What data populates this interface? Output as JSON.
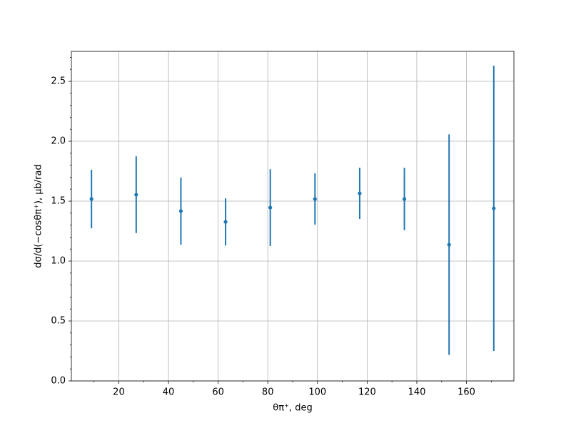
{
  "chart_data": {
    "type": "errorbar",
    "x_label": "θπ⁺, deg",
    "y_label": "dσ/d(−cosθπ⁺), μb/rad",
    "x": [
      9,
      27,
      45,
      63,
      81,
      99,
      117,
      135,
      153,
      171
    ],
    "series": [
      {
        "color": "#1f77b4",
        "values": [
          1.518,
          1.554,
          1.417,
          1.327,
          1.446,
          1.518,
          1.565,
          1.518,
          1.137,
          1.44
        ],
        "errors": [
          0.244,
          0.32,
          0.28,
          0.197,
          0.32,
          0.214,
          0.214,
          0.26,
          0.92,
          1.19
        ]
      }
    ],
    "xlim": [
      0.9,
      179.1
    ],
    "ylim": [
      0,
      2.75
    ],
    "xticks": [
      20,
      40,
      60,
      80,
      100,
      120,
      140,
      160
    ],
    "yticks": [
      {
        "value": 0,
        "label": "0.0"
      },
      0.5,
      {
        "value": 1,
        "label": "1.0"
      },
      1.5,
      {
        "value": 2,
        "label": "2.0"
      },
      2.5
    ],
    "xminorticks": [
      10,
      30,
      50,
      70,
      90,
      110,
      130,
      150,
      170
    ],
    "yminorticks": [
      0.1,
      0.2,
      0.3,
      0.4,
      0.6,
      0.7,
      0.8,
      0.9,
      1.1,
      1.2,
      1.3,
      1.4,
      1.6,
      1.7,
      1.8,
      1.9,
      2.1,
      2.2,
      2.3,
      2.4,
      2.6,
      2.7
    ],
    "grid": true
  }
}
